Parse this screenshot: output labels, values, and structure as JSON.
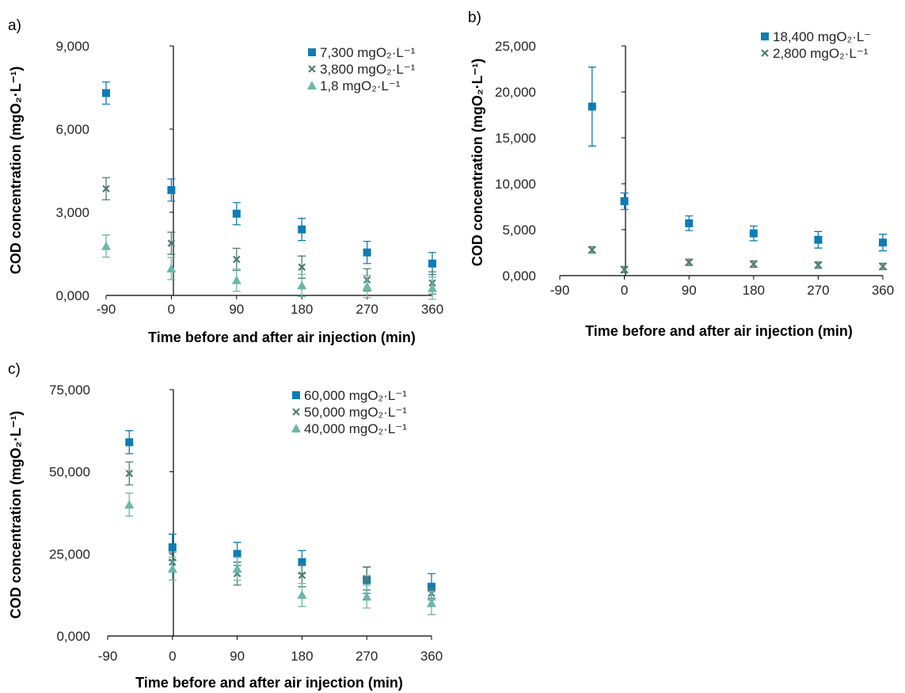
{
  "colors": {
    "series1": "#0f7cb3",
    "series2": "#4e7d74",
    "series3": "#6bb8a8",
    "axis": "#000000",
    "text": "#262626"
  },
  "chart_data": [
    {
      "type": "scatter",
      "panel_label": "a)",
      "xlabel": "Time before and after air injection (min)",
      "ylabel": "COD concentration (mgO₂·L⁻¹)",
      "x_ticks": [
        -90,
        0,
        90,
        180,
        270,
        360
      ],
      "x_tick_labels": [
        "-90",
        "0",
        "90",
        "180",
        "270",
        "360"
      ],
      "y_ticks": [
        0,
        3000,
        6000,
        9000
      ],
      "y_tick_labels": [
        "0,000",
        "3,000",
        "6,000",
        "9,000"
      ],
      "xlim": [
        -90,
        360
      ],
      "ylim": [
        0,
        9000
      ],
      "legend_position": "top-right",
      "series": [
        {
          "name": "7,300 mgO₂·L⁻¹",
          "marker": "square",
          "x": [
            -90,
            0,
            90,
            180,
            270,
            360
          ],
          "y": [
            7300,
            3800,
            2950,
            2380,
            1550,
            1150
          ],
          "err": [
            400,
            400,
            400,
            400,
            400,
            400
          ]
        },
        {
          "name": "3,800 mgO₂·L⁻¹",
          "marker": "x",
          "x": [
            -90,
            0,
            90,
            180,
            270,
            360
          ],
          "y": [
            3850,
            1880,
            1300,
            1020,
            560,
            450
          ],
          "err": [
            400,
            400,
            400,
            400,
            400,
            400
          ]
        },
        {
          "name": "1,8 mgO₂·L⁻¹",
          "marker": "triangle",
          "x": [
            -90,
            0,
            90,
            180,
            270,
            360
          ],
          "y": [
            1780,
            970,
            550,
            360,
            320,
            260
          ],
          "err": [
            400,
            400,
            400,
            400,
            400,
            400
          ]
        }
      ]
    },
    {
      "type": "scatter",
      "panel_label": "b)",
      "xlabel": "Time before and after air injection (min)",
      "ylabel": "COD concentration (mgO₂·L⁻¹)",
      "x_ticks": [
        -90,
        0,
        90,
        180,
        270,
        360
      ],
      "x_tick_labels": [
        "-90",
        "0",
        "90",
        "180",
        "270",
        "360"
      ],
      "y_ticks": [
        0,
        5000,
        10000,
        15000,
        20000,
        25000
      ],
      "y_tick_labels": [
        "0,000",
        "5,000",
        "10,000",
        "15,000",
        "20,000",
        "25,000"
      ],
      "xlim": [
        -90,
        360
      ],
      "ylim": [
        0,
        25000
      ],
      "legend_position": "top-right",
      "series": [
        {
          "name": "18,400 mgO₂·L⁻",
          "marker": "square",
          "x": [
            -45,
            0,
            90,
            180,
            270,
            360
          ],
          "y": [
            18400,
            8100,
            5700,
            4600,
            3900,
            3600
          ],
          "err": [
            4300,
            900,
            800,
            800,
            900,
            900
          ]
        },
        {
          "name": "2,800 mgO₂·L⁻¹",
          "marker": "x",
          "x": [
            -45,
            0,
            90,
            180,
            270,
            360
          ],
          "y": [
            2800,
            650,
            1450,
            1250,
            1150,
            1000
          ],
          "err": [
            350,
            350,
            350,
            350,
            350,
            350
          ]
        }
      ]
    },
    {
      "type": "scatter",
      "panel_label": "c)",
      "xlabel": "Time before and after air injection (min)",
      "ylabel": "COD concentration (mgO₂·L⁻¹)",
      "x_ticks": [
        -90,
        0,
        90,
        180,
        270,
        360
      ],
      "x_tick_labels": [
        "-90",
        "0",
        "90",
        "180",
        "270",
        "360"
      ],
      "y_ticks": [
        0,
        25000,
        50000,
        75000
      ],
      "y_tick_labels": [
        "0,000",
        "25,000",
        "50,000",
        "75,000"
      ],
      "xlim": [
        -90,
        360
      ],
      "ylim": [
        0,
        75000
      ],
      "legend_position": "top-right",
      "series": [
        {
          "name": "60,000 mgO₂·L⁻¹",
          "marker": "square",
          "x": [
            -60,
            0,
            90,
            180,
            270,
            360
          ],
          "y": [
            59000,
            27000,
            25000,
            22500,
            17000,
            15000
          ],
          "err": [
            3500,
            4000,
            3500,
            3500,
            4000,
            4000
          ]
        },
        {
          "name": "50,000 mgO₂·L⁻¹",
          "marker": "x",
          "x": [
            -60,
            0,
            90,
            180,
            270,
            360
          ],
          "y": [
            49500,
            22500,
            19000,
            18500,
            17500,
            13000
          ],
          "err": [
            3500,
            3000,
            3500,
            3500,
            3500,
            1500
          ]
        },
        {
          "name": "40,000 mgO₂·L⁻¹",
          "marker": "triangle",
          "x": [
            -60,
            0,
            90,
            180,
            270,
            360
          ],
          "y": [
            40000,
            20500,
            20500,
            12500,
            12000,
            10000
          ],
          "err": [
            3500,
            3500,
            3500,
            3500,
            3500,
            3500
          ]
        }
      ]
    }
  ]
}
